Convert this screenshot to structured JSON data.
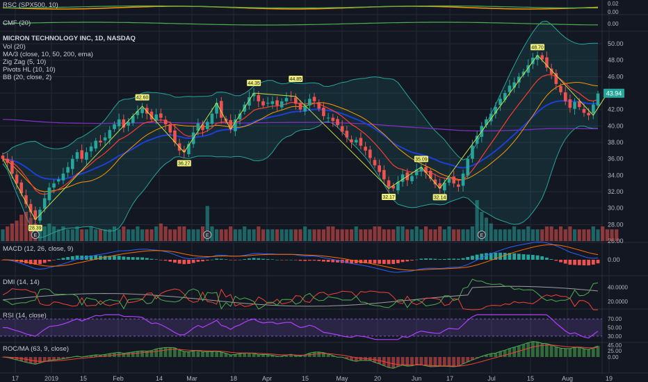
{
  "colors": {
    "bg": "#131722",
    "grid": "#242836",
    "text": "#b2b5be",
    "up": "#26a69a",
    "down": "#ef5350",
    "ma10": "#ff3b30",
    "ma50": "#ff9800",
    "ma200": "#7b2fbe",
    "bb": "#26a69a",
    "zigzag": "#c6e04a",
    "macd": "#2962ff",
    "signal": "#ff6d00",
    "diplus": "#4caf50",
    "diminus": "#f44336",
    "adx": "#9e9e9e",
    "rsi": "#b040ff",
    "roc": "#4caf50",
    "roc_ma": "#f44336"
  },
  "panels": {
    "rsc": {
      "label": "RSC (SPX500, 10)",
      "ticks": [
        "0.02",
        "0.00"
      ]
    },
    "cmf": {
      "label": "CMF (20)",
      "ticks": [
        "0.00"
      ]
    },
    "main": {
      "title": "MICRON TECHNOLOGY INC, 1D, NASDAQ",
      "indicators": [
        "Vol (20)",
        "MA/3 (close, 10, 50, 200, ema)",
        "Zig Zag (5, 10)",
        "Pivots HL (10, 10)",
        "BB (20, close, 2)"
      ],
      "ticks": [
        "50.00",
        "48.00",
        "46.00",
        "44.00",
        "42.00",
        "40.00",
        "38.00",
        "36.00",
        "34.00",
        "32.00",
        "30.00",
        "28.00",
        "26.00"
      ],
      "last_price": "43.94",
      "earnings_marker": "E"
    },
    "macd": {
      "label": "MACD (12, 26, close, 9)",
      "ticks": [
        "0.00"
      ]
    },
    "dmi": {
      "label": "DMI (14, 14)",
      "ticks": [
        "40.0000",
        "20.0000"
      ]
    },
    "rsi": {
      "label": "RSI (14, close)",
      "ticks": [
        "70.00",
        "50.00",
        "30.00"
      ]
    },
    "roc": {
      "label": "ROC/MA (63, 9, close)",
      "ticks": [
        "45.00",
        "25.00",
        "0.00"
      ]
    }
  },
  "x_axis": [
    "17",
    "2019",
    "15",
    "Feb",
    "14",
    "Mar",
    "18",
    "Apr",
    "15",
    "May",
    "20",
    "Jun",
    "17",
    "Jul",
    "15",
    "Aug",
    "19"
  ],
  "chart_data": {
    "type": "candlestick",
    "title": "MICRON TECHNOLOGY INC, 1D, NASDAQ",
    "ylim": [
      26,
      50
    ],
    "pivots": [
      {
        "label": "28.39",
        "x": "late Dec 2018",
        "kind": "low"
      },
      {
        "label": "42.60",
        "x": "mid Feb 2019",
        "kind": "high"
      },
      {
        "label": "36.27",
        "x": "early Mar 2019",
        "kind": "low"
      },
      {
        "label": "44.35",
        "x": "early Apr 2019",
        "kind": "high"
      },
      {
        "label": "44.85",
        "x": "late Apr 2019",
        "kind": "high"
      },
      {
        "label": "32.17",
        "x": "late May 2019",
        "kind": "low"
      },
      {
        "label": "35.09",
        "x": "mid Jun 2019",
        "kind": "high"
      },
      {
        "label": "32.14",
        "x": "mid Jun 2019",
        "kind": "low"
      },
      {
        "label": "48.70",
        "x": "late Jul 2019",
        "kind": "high"
      }
    ],
    "close_path": [
      36.0,
      35.5,
      34.2,
      33.0,
      31.8,
      30.5,
      29.5,
      28.6,
      29.8,
      31.2,
      32.5,
      33.0,
      33.5,
      34.2,
      35.0,
      36.0,
      36.8,
      36.0,
      36.8,
      37.5,
      38.2,
      38.0,
      38.6,
      39.5,
      40.2,
      40.8,
      39.8,
      40.5,
      41.2,
      41.8,
      42.2,
      41.5,
      40.8,
      41.4,
      41.0,
      40.2,
      39.2,
      38.0,
      37.0,
      36.8,
      37.8,
      39.2,
      40.3,
      39.5,
      40.5,
      41.5,
      42.8,
      41.0,
      40.6,
      39.6,
      40.8,
      41.5,
      42.6,
      43.5,
      44.0,
      43.0,
      42.5,
      42.8,
      43.0,
      42.5,
      43.0,
      43.4,
      43.6,
      42.7,
      42.0,
      42.5,
      43.3,
      43.0,
      42.1,
      41.2,
      41.0,
      40.6,
      40.1,
      39.3,
      38.6,
      38.0,
      38.3,
      37.6,
      37.0,
      36.1,
      35.2,
      34.4,
      33.5,
      32.6,
      32.4,
      33.2,
      34.1,
      33.4,
      33.9,
      34.7,
      35.0,
      34.3,
      33.6,
      32.9,
      32.4,
      33.1,
      33.6,
      33.0,
      32.6,
      34.2,
      36.0,
      37.6,
      38.8,
      40.0,
      40.8,
      41.5,
      42.3,
      43.3,
      44.0,
      44.9,
      45.3,
      46.0,
      46.6,
      47.4,
      48.3,
      48.6,
      48.1,
      47.1,
      46.3,
      45.1,
      44.1,
      43.0,
      42.2,
      42.9,
      42.3,
      41.6,
      41.3,
      42.6,
      43.94
    ],
    "volume_path": [
      4,
      5,
      6,
      7,
      9,
      10,
      8,
      6,
      5,
      5,
      6,
      5,
      4,
      5,
      4,
      4,
      5,
      4,
      4,
      5,
      4,
      4,
      4,
      4,
      5,
      4,
      5,
      4,
      4,
      5,
      4,
      4,
      4,
      5,
      6,
      5,
      4,
      4,
      5,
      5,
      4,
      4,
      4,
      5,
      12,
      5,
      4,
      4,
      4,
      5,
      4,
      4,
      5,
      4,
      4,
      5,
      4,
      4,
      4,
      4,
      4,
      4,
      4,
      4,
      4,
      5,
      4,
      4,
      4,
      4,
      5,
      5,
      4,
      4,
      4,
      4,
      5,
      4,
      4,
      4,
      5,
      5,
      4,
      4,
      4,
      5,
      5,
      4,
      4,
      5,
      4,
      5,
      4,
      4,
      5,
      4,
      5,
      4,
      4,
      4,
      4,
      5,
      14,
      10,
      8,
      6,
      4,
      4,
      4,
      4,
      5,
      4,
      4,
      5,
      4,
      4,
      4,
      5,
      5,
      4,
      5,
      4,
      5,
      4,
      4,
      4,
      4,
      5,
      4,
      5,
      4,
      4,
      4
    ]
  }
}
